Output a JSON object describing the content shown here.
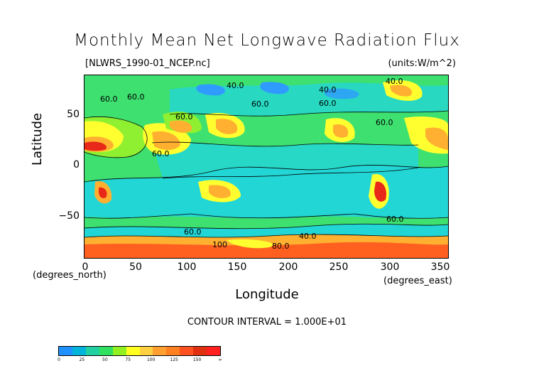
{
  "title": "Monthly Mean Net Longwave Radiation Flux",
  "file_label": "[NLWRS_1990-01_NCEP.nc]",
  "units_label": "(units:W/m^2)",
  "x_axis": {
    "title": "Longitude",
    "ticks": [
      "0",
      "50",
      "100",
      "150",
      "200",
      "250",
      "300",
      "350"
    ],
    "unit_note": "(degrees_east)"
  },
  "y_axis": {
    "title": "Latitude",
    "ticks": [
      "50",
      "0",
      "−50"
    ],
    "unit_note": "(degrees_north)"
  },
  "contour_interval": "CONTOUR INTERVAL = 1.000E+01",
  "contour_labels": [
    "40.0",
    "40.0",
    "60.0",
    "60.0",
    "60.0",
    "60.0",
    "60.0",
    "60.0",
    "60.0",
    "60.0",
    "40.0",
    "80.0",
    "100",
    "60.0",
    "40.0"
  ],
  "colorbar": {
    "labels": [
      "0",
      "25",
      "50",
      "75",
      "100",
      "125",
      "150",
      "∞"
    ],
    "colors": [
      "#1e90ff",
      "#00b4dc",
      "#20d0a0",
      "#30e060",
      "#90f020",
      "#ffff20",
      "#ffd040",
      "#ffa030",
      "#ff8020",
      "#ff5020",
      "#e03010",
      "#ff2020"
    ]
  },
  "palette": {
    "deep_blue": "#2f9bff",
    "cyan": "#23d6d6",
    "teal": "#30e0b0",
    "green": "#3ee070",
    "lime": "#8ef030",
    "yellow": "#ffff30",
    "orange": "#ffb030",
    "red_orange": "#ff6020",
    "red": "#e82818"
  }
}
